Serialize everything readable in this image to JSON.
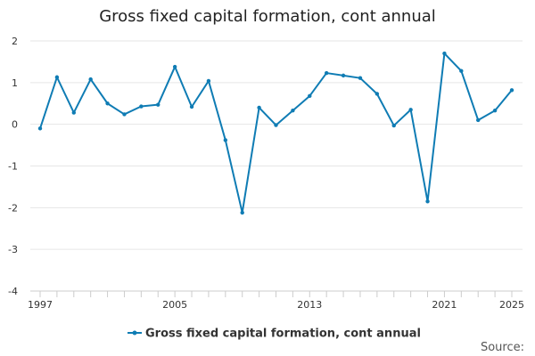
{
  "chart_data": {
    "type": "line",
    "title": "Gross fixed capital formation, cont annual",
    "xlabel": "",
    "ylabel": "",
    "x": [
      1997,
      1998,
      1999,
      2000,
      2001,
      2002,
      2003,
      2004,
      2005,
      2006,
      2007,
      2008,
      2009,
      2010,
      2011,
      2012,
      2013,
      2014,
      2015,
      2016,
      2017,
      2018,
      2019,
      2020,
      2021,
      2022,
      2023,
      2024,
      2025
    ],
    "xlim": [
      1997,
      2025
    ],
    "ylim": [
      -4,
      2
    ],
    "yticks": [
      2,
      1,
      0,
      -1,
      -2,
      -3,
      -4
    ],
    "xtick_labels": [
      {
        "x": 1997,
        "label": "1997"
      },
      {
        "x": 2005,
        "label": "2005"
      },
      {
        "x": 2013,
        "label": "2013"
      },
      {
        "x": 2021,
        "label": "2021"
      },
      {
        "x": 2025,
        "label": "2025"
      }
    ],
    "grid": "horizontal",
    "legend_position": "bottom",
    "series": [
      {
        "name": "Gross fixed capital formation, cont annual",
        "color": "#0f7cb4",
        "values": [
          -0.1,
          1.13,
          0.28,
          1.08,
          0.5,
          0.24,
          0.43,
          0.47,
          1.38,
          0.42,
          1.04,
          -0.38,
          -2.12,
          0.4,
          -0.02,
          0.33,
          0.68,
          1.23,
          1.17,
          1.11,
          0.73,
          -0.03,
          0.35,
          -1.85,
          1.7,
          1.28,
          0.1,
          0.33,
          0.82
        ]
      }
    ],
    "source_label": "Source:"
  }
}
